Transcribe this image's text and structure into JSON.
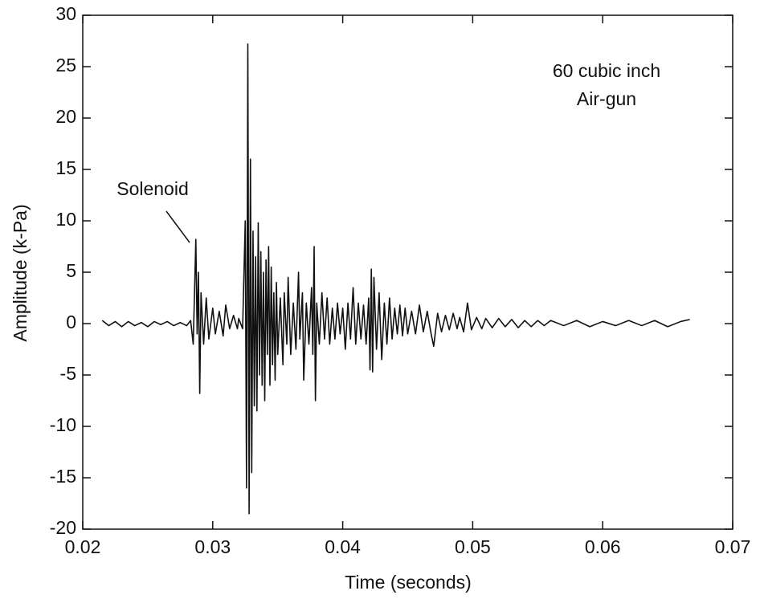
{
  "chart_data": {
    "type": "line",
    "xlabel": "Time (seconds)",
    "ylabel": "Amplitude (k-Pa)",
    "annotations": [
      "Solenoid",
      "60 cubic inch",
      "Air-gun"
    ],
    "color": "#111111",
    "xlim": [
      0.02,
      0.07
    ],
    "xticks": [
      0.02,
      0.03,
      0.04,
      0.05,
      0.06,
      0.07
    ],
    "ylim": [
      -20,
      30
    ],
    "yticks": [
      -20,
      -15,
      -10,
      -5,
      0,
      5,
      10,
      15,
      20,
      25,
      30
    ],
    "x": [
      0.0215,
      0.022,
      0.0225,
      0.023,
      0.0235,
      0.024,
      0.0245,
      0.025,
      0.0255,
      0.026,
      0.0265,
      0.027,
      0.0275,
      0.028,
      0.0283,
      0.0285,
      0.0287,
      0.0288,
      0.0289,
      0.029,
      0.0291,
      0.0293,
      0.0295,
      0.0297,
      0.03,
      0.0302,
      0.0305,
      0.0308,
      0.031,
      0.0313,
      0.0316,
      0.0319,
      0.032,
      0.0323,
      0.0325,
      0.0326,
      0.0327,
      0.0328,
      0.0329,
      0.033,
      0.0331,
      0.0332,
      0.0333,
      0.0334,
      0.0335,
      0.0336,
      0.0337,
      0.0338,
      0.0339,
      0.034,
      0.0341,
      0.0342,
      0.0343,
      0.0344,
      0.0345,
      0.0346,
      0.0347,
      0.0348,
      0.0349,
      0.035,
      0.0352,
      0.0354,
      0.0355,
      0.0357,
      0.0358,
      0.036,
      0.0362,
      0.0364,
      0.0366,
      0.0367,
      0.0369,
      0.037,
      0.0372,
      0.0374,
      0.0376,
      0.0377,
      0.0378,
      0.0379,
      0.038,
      0.0382,
      0.0384,
      0.0386,
      0.0388,
      0.039,
      0.0392,
      0.0394,
      0.0396,
      0.0398,
      0.04,
      0.0402,
      0.0404,
      0.0406,
      0.0408,
      0.041,
      0.0412,
      0.0414,
      0.0416,
      0.0418,
      0.042,
      0.0421,
      0.0422,
      0.0423,
      0.0424,
      0.0426,
      0.0428,
      0.043,
      0.0432,
      0.0434,
      0.0436,
      0.0438,
      0.044,
      0.0442,
      0.0444,
      0.0446,
      0.0448,
      0.045,
      0.0453,
      0.0456,
      0.0459,
      0.0462,
      0.0465,
      0.0468,
      0.047,
      0.0473,
      0.0476,
      0.0479,
      0.0482,
      0.0485,
      0.0488,
      0.049,
      0.0493,
      0.0496,
      0.0499,
      0.0503,
      0.0507,
      0.051,
      0.0515,
      0.052,
      0.0525,
      0.053,
      0.0535,
      0.054,
      0.0545,
      0.055,
      0.0555,
      0.056,
      0.057,
      0.058,
      0.059,
      0.06,
      0.061,
      0.062,
      0.063,
      0.064,
      0.065,
      0.066,
      0.0667
    ],
    "values": [
      0.3,
      -0.2,
      0.2,
      -0.3,
      0.2,
      -0.2,
      0.1,
      -0.3,
      0.2,
      -0.1,
      0.2,
      -0.2,
      0.1,
      -0.2,
      0.3,
      -2,
      8.2,
      -1,
      5,
      -6.8,
      3,
      -2,
      2.5,
      -1.5,
      1.5,
      -1,
      1.2,
      -1.2,
      1.8,
      -0.5,
      0.8,
      -0.5,
      0.5,
      -0.5,
      10,
      -16,
      27.2,
      -18.5,
      16,
      -14.5,
      9,
      -8,
      6.5,
      -8.5,
      9.8,
      -5,
      7,
      -6,
      5,
      -7.5,
      6.2,
      -3,
      7.5,
      -6,
      5.5,
      -4,
      3,
      -5.5,
      4,
      -3,
      2.5,
      -4,
      3,
      -2,
      4.5,
      -3,
      2,
      -2.5,
      5,
      -1.5,
      3,
      -5.5,
      2,
      -2,
      3.5,
      -3,
      7.5,
      -7.5,
      2,
      -2,
      3,
      -1.5,
      2.5,
      -2,
      1.5,
      -1.5,
      2,
      -1,
      1.5,
      -2.5,
      2,
      -1.5,
      3.5,
      -2,
      2,
      -1.5,
      1.8,
      -2,
      2.5,
      -4.5,
      5.3,
      -4.7,
      4.5,
      -2.5,
      3,
      -3.5,
      2,
      -2,
      2.5,
      -1.5,
      1.5,
      -1,
      1.8,
      -1.2,
      1.5,
      -1,
      1.2,
      -1,
      1.8,
      -0.8,
      1.2,
      -1,
      -2.2,
      1,
      -0.8,
      0.8,
      -0.6,
      1,
      -0.5,
      0.6,
      -0.8,
      2,
      -0.6,
      0.6,
      -0.5,
      0.5,
      -0.4,
      0.5,
      -0.3,
      0.4,
      -0.4,
      0.3,
      -0.3,
      0.3,
      -0.2,
      0.3,
      -0.2,
      0.3,
      -0.3,
      0.2,
      -0.2,
      0.3,
      -0.2,
      0.3,
      -0.3,
      0.2,
      0.4
    ]
  }
}
